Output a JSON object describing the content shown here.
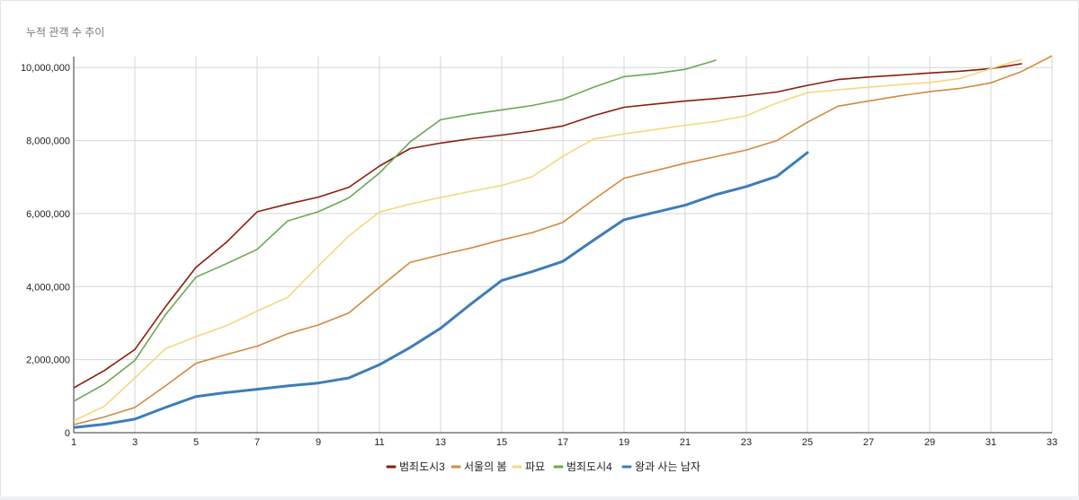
{
  "chart_data": {
    "type": "line",
    "title": "누적 관객 수 추이",
    "xlabel": "",
    "ylabel": "",
    "xlim": [
      1,
      33
    ],
    "ylim": [
      0,
      10300000
    ],
    "x_ticks": [
      1,
      3,
      5,
      7,
      9,
      11,
      13,
      15,
      17,
      19,
      21,
      23,
      25,
      27,
      29,
      31,
      33
    ],
    "y_ticks": [
      0,
      2000000,
      4000000,
      6000000,
      8000000,
      10000000
    ],
    "y_tick_labels": [
      "0",
      "2,000,000",
      "4,000,000",
      "6,000,000",
      "8,000,000",
      "10,000,000"
    ],
    "grid": true,
    "legend_position": "bottom",
    "series": [
      {
        "name": "범죄도시3",
        "color": "#8a1d0f",
        "width": 1.6,
        "x": [
          1,
          2,
          3,
          4,
          5,
          6,
          7,
          8,
          9,
          10,
          11,
          12,
          13,
          14,
          15,
          16,
          17,
          18,
          19,
          20,
          21,
          22,
          23,
          24,
          25,
          26,
          27,
          28,
          29,
          30,
          31,
          32
        ],
        "values": [
          1230000,
          1700000,
          2280000,
          3450000,
          4530000,
          5220000,
          6050000,
          6260000,
          6450000,
          6720000,
          7300000,
          7780000,
          7930000,
          8050000,
          8150000,
          8260000,
          8400000,
          8680000,
          8910000,
          9000000,
          9080000,
          9150000,
          9230000,
          9330000,
          9510000,
          9670000,
          9740000,
          9790000,
          9850000,
          9900000,
          9970000,
          10100000
        ]
      },
      {
        "name": "서울의 봄",
        "color": "#d08b3f",
        "width": 1.6,
        "x": [
          1,
          2,
          3,
          4,
          5,
          6,
          7,
          8,
          9,
          10,
          11,
          12,
          13,
          14,
          15,
          16,
          17,
          18,
          19,
          20,
          21,
          22,
          23,
          24,
          25,
          26,
          27,
          28,
          29,
          30,
          31,
          32,
          33
        ],
        "values": [
          220000,
          430000,
          690000,
          1280000,
          1900000,
          2140000,
          2370000,
          2710000,
          2950000,
          3280000,
          3980000,
          4660000,
          4870000,
          5060000,
          5280000,
          5480000,
          5760000,
          6380000,
          6970000,
          7170000,
          7380000,
          7560000,
          7740000,
          8000000,
          8500000,
          8940000,
          9080000,
          9220000,
          9340000,
          9430000,
          9580000,
          9890000,
          10320000
        ]
      },
      {
        "name": "파묘",
        "color": "#f5d77e",
        "width": 1.6,
        "x": [
          1,
          2,
          3,
          4,
          5,
          6,
          7,
          8,
          9,
          10,
          11,
          12,
          13,
          14,
          15,
          16,
          17,
          18,
          19,
          20,
          21,
          22,
          23,
          24,
          25,
          26,
          27,
          28,
          29,
          30,
          31,
          32
        ],
        "values": [
          330000,
          720000,
          1500000,
          2300000,
          2630000,
          2930000,
          3330000,
          3710000,
          4560000,
          5390000,
          6040000,
          6260000,
          6440000,
          6610000,
          6770000,
          7010000,
          7570000,
          8040000,
          8180000,
          8300000,
          8420000,
          8520000,
          8680000,
          9030000,
          9310000,
          9390000,
          9460000,
          9530000,
          9590000,
          9700000,
          9970000,
          10220000
        ]
      },
      {
        "name": "범죄도시4",
        "color": "#6aa84f",
        "width": 1.6,
        "x": [
          1,
          2,
          3,
          4,
          5,
          6,
          7,
          8,
          9,
          10,
          11,
          12,
          13,
          14,
          15,
          16,
          17,
          18,
          19,
          20,
          21,
          22
        ],
        "values": [
          860000,
          1330000,
          1980000,
          3230000,
          4260000,
          4630000,
          5020000,
          5800000,
          6050000,
          6430000,
          7110000,
          7960000,
          8570000,
          8720000,
          8840000,
          8960000,
          9130000,
          9460000,
          9750000,
          9830000,
          9950000,
          10200000
        ]
      },
      {
        "name": "왕과 사는 남자",
        "color": "#3d7db7",
        "width": 3,
        "x": [
          1,
          2,
          3,
          4,
          5,
          6,
          7,
          8,
          9,
          10,
          11,
          12,
          13,
          14,
          15,
          16,
          17,
          18,
          19,
          20,
          21,
          22,
          23,
          24,
          25
        ],
        "values": [
          140000,
          230000,
          370000,
          690000,
          990000,
          1100000,
          1190000,
          1280000,
          1360000,
          1500000,
          1860000,
          2330000,
          2860000,
          3530000,
          4170000,
          4410000,
          4690000,
          5270000,
          5830000,
          6030000,
          6230000,
          6520000,
          6740000,
          7020000,
          7670000
        ]
      }
    ]
  }
}
